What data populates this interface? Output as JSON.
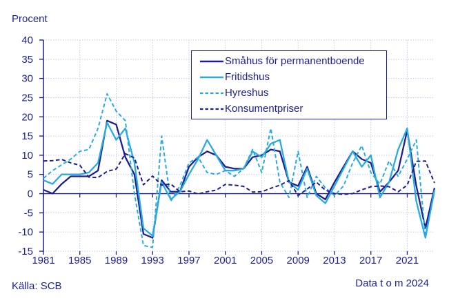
{
  "page": {
    "ylabel": "Procent",
    "source": "Källa: SCB",
    "note": "Data t o m 2024"
  },
  "chart_data": {
    "type": "line",
    "title": "",
    "xlabel": "",
    "ylabel": "Procent",
    "ylim": [
      -15,
      40
    ],
    "ytick_step": 5,
    "grid": true,
    "legend_position": "top-center-inside",
    "x": [
      1981,
      1982,
      1983,
      1984,
      1985,
      1986,
      1987,
      1988,
      1989,
      1990,
      1991,
      1992,
      1993,
      1994,
      1995,
      1996,
      1997,
      1998,
      1999,
      2000,
      2001,
      2002,
      2003,
      2004,
      2005,
      2006,
      2007,
      2008,
      2009,
      2010,
      2011,
      2012,
      2013,
      2014,
      2015,
      2016,
      2017,
      2018,
      2019,
      2020,
      2021,
      2022,
      2023,
      2024
    ],
    "xticks": [
      1981,
      1985,
      1989,
      1993,
      1997,
      2001,
      2005,
      2009,
      2013,
      2017,
      2021
    ],
    "colors": {
      "navy": "#1d1f8d",
      "cyan": "#2aabdf",
      "gridline": "#bfcbec"
    },
    "series": [
      {
        "name": "Småhus för permanentboende",
        "color": "#1d1f8d",
        "style": "solid",
        "values": [
          1.0,
          0.0,
          2.5,
          4.5,
          4.5,
          4.5,
          6.0,
          19.0,
          18.0,
          9.5,
          5.0,
          -10.5,
          -11.5,
          3.5,
          0.5,
          0.5,
          7.0,
          9.5,
          11.0,
          10.0,
          7.0,
          6.5,
          6.5,
          9.5,
          10.0,
          11.5,
          11.0,
          3.0,
          2.0,
          7.0,
          0.0,
          -1.5,
          3.0,
          7.0,
          11.0,
          9.0,
          8.0,
          0.5,
          3.0,
          6.0,
          16.5,
          2.0,
          -9.0,
          1.5
        ]
      },
      {
        "name": "Fritidshus",
        "color": "#2aabdf",
        "style": "solid",
        "values": [
          3.5,
          2.5,
          5.0,
          5.0,
          5.0,
          5.5,
          8.0,
          18.5,
          14.0,
          17.0,
          8.0,
          -9.0,
          -11.0,
          3.0,
          -1.5,
          0.5,
          5.0,
          9.0,
          14.0,
          10.0,
          6.0,
          6.0,
          6.5,
          11.0,
          9.5,
          13.0,
          14.0,
          3.0,
          1.0,
          6.5,
          -0.5,
          -2.5,
          2.0,
          6.5,
          11.0,
          7.0,
          10.0,
          -1.0,
          3.0,
          11.5,
          17.0,
          -2.0,
          -11.5,
          1.0
        ]
      },
      {
        "name": "Hyreshus",
        "color": "#2aabdf",
        "style": "dashed",
        "values": [
          4.0,
          6.0,
          7.5,
          9.0,
          11.0,
          11.5,
          17.0,
          26.0,
          21.5,
          19.0,
          0.0,
          -13.5,
          -14.0,
          15.0,
          -2.0,
          2.0,
          8.0,
          9.5,
          5.5,
          5.0,
          6.0,
          4.5,
          6.5,
          11.5,
          5.5,
          17.0,
          3.0,
          -1.0,
          11.0,
          -1.0,
          4.5,
          1.5,
          -0.5,
          2.0,
          8.0,
          12.5,
          5.5,
          2.5,
          8.5,
          4.5,
          9.0,
          14.0,
          -11.0,
          0.5
        ]
      },
      {
        "name": "Konsumentpriser",
        "color": "#1d1f8d",
        "style": "dashed",
        "values": [
          8.5,
          8.6,
          8.9,
          8.0,
          7.4,
          4.3,
          4.2,
          5.8,
          6.4,
          10.4,
          9.3,
          2.3,
          4.6,
          2.2,
          2.5,
          0.5,
          0.7,
          -0.1,
          0.5,
          0.9,
          2.4,
          2.2,
          1.9,
          0.4,
          0.5,
          1.4,
          2.2,
          3.4,
          -0.5,
          1.2,
          3.0,
          0.9,
          0.0,
          -0.2,
          0.0,
          1.0,
          1.8,
          2.0,
          1.8,
          0.5,
          2.2,
          8.4,
          8.5,
          2.8
        ]
      }
    ]
  }
}
